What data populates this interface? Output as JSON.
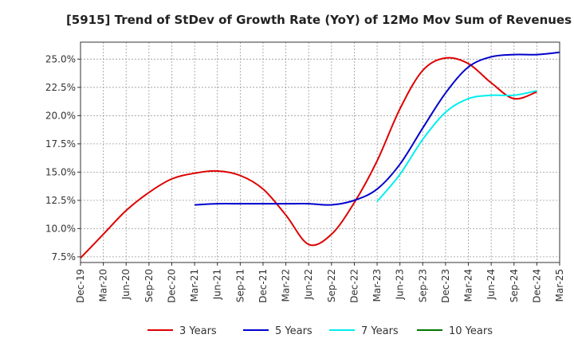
{
  "chart_data": {
    "type": "line",
    "title": "[5915]  Trend of StDev of Growth Rate (YoY) of 12Mo Mov Sum of Revenues",
    "xlabel": "",
    "ylabel": "",
    "x_ticks": [
      "Dec-19",
      "Mar-20",
      "Jun-20",
      "Sep-20",
      "Dec-20",
      "Mar-21",
      "Jun-21",
      "Sep-21",
      "Dec-21",
      "Mar-22",
      "Jun-22",
      "Sep-22",
      "Dec-22",
      "Mar-23",
      "Jun-23",
      "Sep-23",
      "Dec-23",
      "Mar-24",
      "Jun-24",
      "Sep-24",
      "Dec-24",
      "Mar-25"
    ],
    "y_ticks": [
      7.5,
      10.0,
      12.5,
      15.0,
      17.5,
      20.0,
      22.5,
      25.0
    ],
    "y_tick_labels": [
      "7.5%",
      "10.0%",
      "12.5%",
      "15.0%",
      "17.5%",
      "20.0%",
      "22.5%",
      "25.0%"
    ],
    "ylim": [
      7.0,
      26.5
    ],
    "xlim": [
      0,
      21
    ],
    "grid": true,
    "series": [
      {
        "name": "3 Years",
        "color": "#dd0000",
        "start_index": 0,
        "values": [
          7.4,
          9.5,
          11.6,
          13.2,
          14.4,
          14.9,
          15.1,
          14.7,
          13.5,
          11.2,
          8.6,
          9.5,
          12.3,
          16.0,
          20.6,
          24.0,
          25.1,
          24.6,
          22.9,
          21.5,
          22.1
        ]
      },
      {
        "name": "5 Years",
        "color": "#0000cc",
        "start_index": 5,
        "values": [
          12.1,
          12.2,
          12.2,
          12.2,
          12.2,
          12.2,
          12.1,
          12.5,
          13.5,
          15.7,
          18.9,
          22.0,
          24.3,
          25.2,
          25.4,
          25.4,
          25.6
        ]
      },
      {
        "name": "7 Years",
        "color": "#00eeee",
        "start_index": 13,
        "values": [
          12.4,
          14.8,
          17.9,
          20.3,
          21.5,
          21.8,
          21.8,
          22.2
        ]
      },
      {
        "name": "10 Years",
        "color": "#007700",
        "start_index": 0,
        "values": []
      }
    ]
  }
}
